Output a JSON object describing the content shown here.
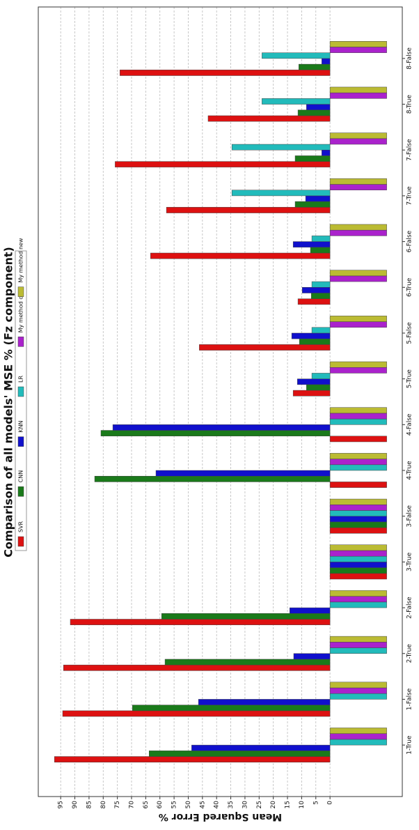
{
  "chart_data": {
    "type": "bar",
    "title": "Comparison of all models' MSE % (Fz component)",
    "y_label": "Mean Squared Error %",
    "categories": [
      "1-True",
      "1-False",
      "2-True",
      "2-False",
      "3-True",
      "3-False",
      "4-True",
      "4-False",
      "5-True",
      "5-False",
      "6-True",
      "6-False",
      "7-True",
      "7-False",
      "8-True",
      "8-False"
    ],
    "series": [
      {
        "name": "SVR",
        "color": "#dd1111",
        "values": [
          97.2,
          94.3,
          94,
          91.6,
          -20,
          -20,
          -20,
          -20,
          13,
          46.1,
          11.3,
          63.3,
          57.7,
          75.8,
          43,
          74.1
        ]
      },
      {
        "name": "CNN",
        "color": "#1a7a1a",
        "values": [
          63.8,
          69.7,
          58.2,
          59.4,
          -20,
          -20,
          83,
          80.8,
          8.3,
          10.8,
          6.6,
          6.9,
          12.3,
          12.3,
          11.3,
          11
        ]
      },
      {
        "name": "KNN",
        "color": "#1010cc",
        "values": [
          48.8,
          46.4,
          12.8,
          14.2,
          -20,
          -20,
          61.4,
          76.6,
          11.5,
          13.5,
          9.8,
          13,
          8.6,
          2.9,
          8.3,
          2.9
        ]
      },
      {
        "name": "LR",
        "color": "#22bbbb",
        "values": [
          -20,
          -20,
          -20,
          -20,
          -20,
          -20,
          -20,
          -20,
          6.4,
          6.4,
          6.4,
          6.4,
          34.6,
          34.6,
          24,
          24
        ]
      },
      {
        "name": "My method old",
        "color": "#aa22cc",
        "values": [
          -20,
          -20,
          -20,
          -20,
          -20,
          -20,
          -20,
          -20,
          -20,
          -20,
          -20,
          -20,
          -20,
          -20,
          -20,
          -20
        ]
      },
      {
        "name": "My method new",
        "color": "#bbbb33",
        "values": [
          -20,
          -20,
          -20,
          -20,
          -20,
          -20,
          -20,
          -20,
          -20,
          -20,
          -20,
          -20,
          -20,
          -20,
          -20,
          -20
        ]
      }
    ],
    "ylim": [
      -25.5,
      102.9
    ],
    "yticks": [
      0,
      5,
      10,
      15,
      20,
      25,
      30,
      35,
      40,
      45,
      50,
      55,
      60,
      65,
      70,
      75,
      80,
      85,
      90,
      95
    ],
    "grid": true,
    "legend_loc": "upper center",
    "rotation": -90
  }
}
